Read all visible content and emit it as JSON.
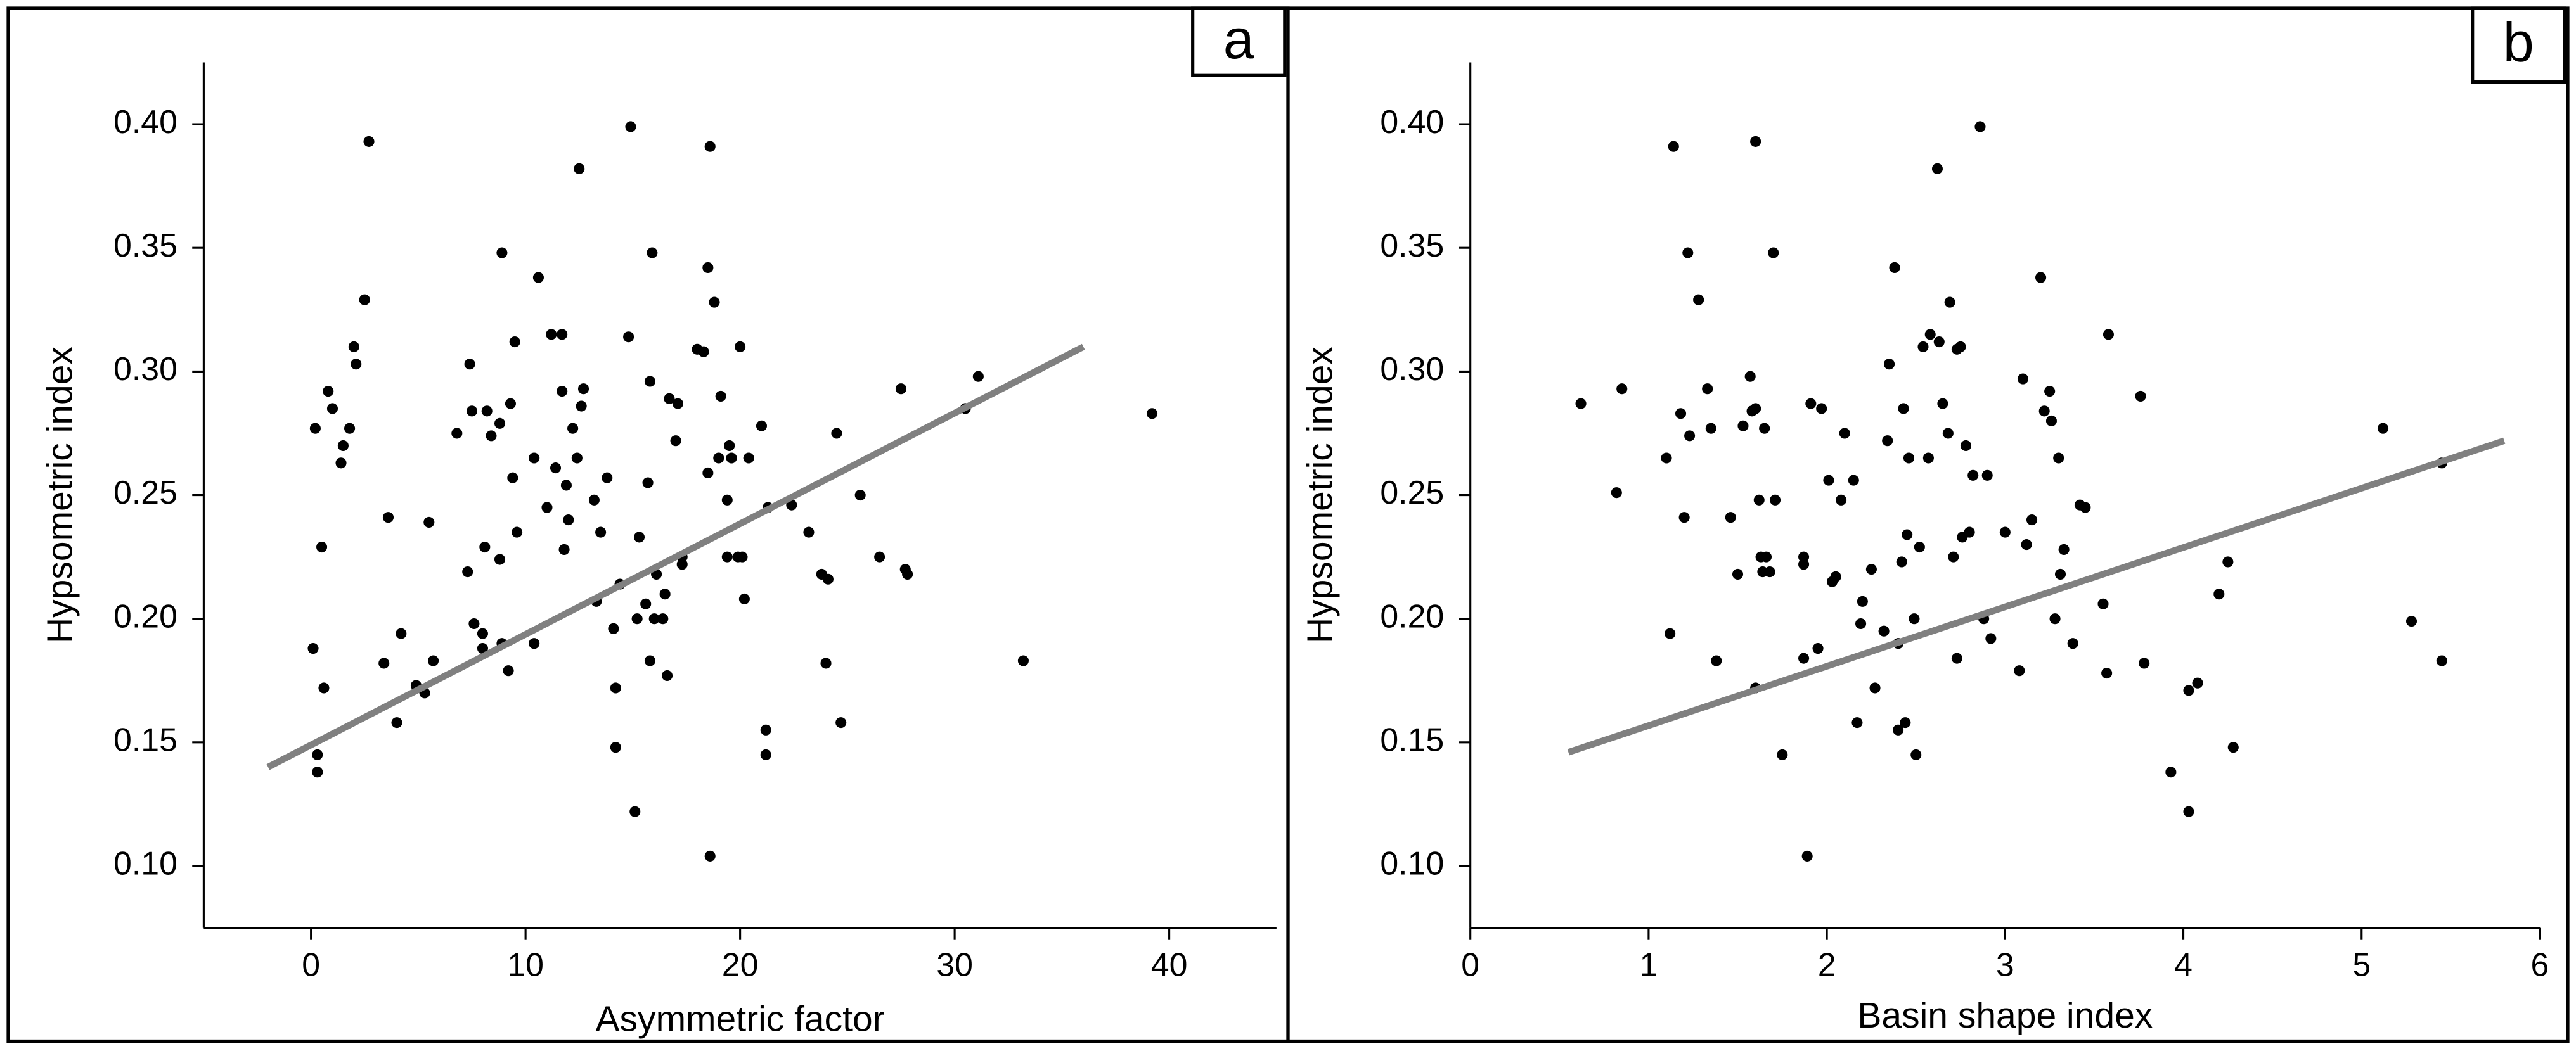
{
  "chart_data": [
    {
      "type": "scatter",
      "panel": "a",
      "x_label": "Asymmetric factor",
      "y_label": "Hypsometric index",
      "xlim": [
        -5,
        45
      ],
      "ylim": [
        0.075,
        0.425
      ],
      "xticks": [
        0,
        10,
        20,
        30,
        40
      ],
      "yticks": [
        {
          "value": 0.1,
          "label": "0.10"
        },
        0.15,
        {
          "value": 0.2,
          "label": "0.20"
        },
        0.25,
        {
          "value": 0.3,
          "label": "0.30"
        },
        0.35,
        {
          "value": 0.4,
          "label": "0.40"
        }
      ],
      "color": "#000000",
      "x": [
        0.1,
        0.2,
        0.3,
        0.3,
        0.5,
        0.6,
        0.8,
        1.0,
        1.4,
        1.5,
        1.8,
        2.0,
        2.1,
        2.5,
        2.7,
        3.4,
        3.6,
        4.0,
        4.2,
        4.9,
        5.3,
        5.5,
        5.7,
        6.8,
        7.3,
        7.4,
        7.5,
        7.6,
        8.0,
        8.0,
        8.1,
        8.2,
        8.4,
        8.8,
        8.8,
        8.9,
        8.9,
        9.2,
        9.3,
        9.4,
        9.5,
        9.6,
        10.4,
        10.4,
        10.6,
        11.0,
        11.2,
        11.4,
        11.7,
        11.7,
        11.8,
        11.9,
        12.0,
        12.2,
        12.4,
        12.5,
        12.6,
        12.7,
        13.2,
        13.3,
        13.5,
        13.8,
        14.1,
        14.2,
        14.2,
        14.4,
        14.8,
        14.9,
        15.1,
        15.2,
        15.3,
        15.6,
        15.7,
        15.8,
        15.8,
        15.9,
        16.0,
        16.1,
        16.4,
        16.5,
        16.6,
        16.7,
        17.0,
        17.1,
        17.3,
        17.3,
        18.0,
        18.3,
        18.5,
        18.5,
        18.6,
        18.6,
        18.8,
        19.0,
        19.1,
        19.4,
        19.4,
        19.5,
        19.6,
        19.9,
        20.0,
        20.1,
        20.2,
        20.4,
        21.0,
        21.2,
        21.2,
        21.3,
        22.4,
        23.2,
        23.8,
        24.0,
        24.1,
        24.5,
        24.7,
        25.6,
        26.5,
        27.5,
        27.7,
        27.8,
        30.5,
        31.1,
        33.2,
        39.2
      ],
      "values": [
        0.188,
        0.277,
        0.145,
        0.138,
        0.229,
        0.172,
        0.292,
        0.285,
        0.263,
        0.27,
        0.277,
        0.31,
        0.303,
        0.329,
        0.393,
        0.182,
        0.241,
        0.158,
        0.194,
        0.173,
        0.17,
        0.239,
        0.183,
        0.275,
        0.219,
        0.303,
        0.284,
        0.198,
        0.194,
        0.188,
        0.229,
        0.284,
        0.274,
        0.279,
        0.224,
        0.19,
        0.348,
        0.179,
        0.287,
        0.257,
        0.312,
        0.235,
        0.19,
        0.265,
        0.338,
        0.245,
        0.315,
        0.261,
        0.315,
        0.292,
        0.228,
        0.254,
        0.24,
        0.277,
        0.265,
        0.382,
        0.286,
        0.293,
        0.248,
        0.207,
        0.235,
        0.257,
        0.196,
        0.148,
        0.172,
        0.214,
        0.314,
        0.399,
        0.122,
        0.2,
        0.233,
        0.206,
        0.255,
        0.296,
        0.183,
        0.348,
        0.2,
        0.218,
        0.2,
        0.21,
        0.177,
        0.289,
        0.272,
        0.287,
        0.222,
        0.225,
        0.309,
        0.308,
        0.259,
        0.342,
        0.104,
        0.391,
        0.328,
        0.265,
        0.29,
        0.225,
        0.248,
        0.27,
        0.265,
        0.225,
        0.31,
        0.225,
        0.208,
        0.265,
        0.278,
        0.145,
        0.155,
        0.245,
        0.246,
        0.235,
        0.218,
        0.182,
        0.216,
        0.275,
        0.158,
        0.25,
        0.225,
        0.293,
        0.22,
        0.218,
        0.285,
        0.298,
        0.183,
        0.283
      ],
      "trendline": {
        "x": [
          -2,
          36
        ],
        "values": [
          0.14,
          0.31
        ],
        "color": "#808080"
      }
    },
    {
      "type": "scatter",
      "panel": "b",
      "x_label": "Basin shape index",
      "y_label": "Hypsometric index",
      "xlim": [
        0,
        6
      ],
      "ylim": [
        0.075,
        0.425
      ],
      "xticks": [
        0,
        1,
        2,
        3,
        4,
        5,
        6
      ],
      "yticks": [
        {
          "value": 0.1,
          "label": "0.10"
        },
        0.15,
        {
          "value": 0.2,
          "label": "0.20"
        },
        0.25,
        {
          "value": 0.3,
          "label": "0.30"
        },
        0.35,
        {
          "value": 0.4,
          "label": "0.40"
        }
      ],
      "color": "#000000",
      "x": [
        0.62,
        0.82,
        0.85,
        1.1,
        1.12,
        1.14,
        1.18,
        1.2,
        1.22,
        1.23,
        1.28,
        1.33,
        1.35,
        1.38,
        1.46,
        1.5,
        1.53,
        1.57,
        1.58,
        1.6,
        1.6,
        1.6,
        1.62,
        1.63,
        1.64,
        1.65,
        1.66,
        1.68,
        1.7,
        1.71,
        1.75,
        1.87,
        1.87,
        1.87,
        1.89,
        1.91,
        1.95,
        1.97,
        2.01,
        2.03,
        2.05,
        2.08,
        2.1,
        2.15,
        2.17,
        2.19,
        2.2,
        2.25,
        2.27,
        2.32,
        2.34,
        2.35,
        2.38,
        2.4,
        2.4,
        2.42,
        2.43,
        2.44,
        2.45,
        2.46,
        2.49,
        2.5,
        2.52,
        2.54,
        2.57,
        2.58,
        2.62,
        2.63,
        2.65,
        2.68,
        2.69,
        2.71,
        2.73,
        2.73,
        2.75,
        2.76,
        2.78,
        2.8,
        2.82,
        2.86,
        2.88,
        2.9,
        2.92,
        3.0,
        3.08,
        3.1,
        3.12,
        3.15,
        3.2,
        3.22,
        3.25,
        3.26,
        3.28,
        3.3,
        3.31,
        3.33,
        3.38,
        3.42,
        3.45,
        3.55,
        3.57,
        3.58,
        3.76,
        3.78,
        3.93,
        4.03,
        4.03,
        4.08,
        4.2,
        4.25,
        4.28,
        5.12,
        5.28,
        5.45,
        5.45
      ],
      "values": [
        0.287,
        0.251,
        0.293,
        0.265,
        0.194,
        0.391,
        0.283,
        0.241,
        0.348,
        0.274,
        0.329,
        0.293,
        0.277,
        0.183,
        0.241,
        0.218,
        0.278,
        0.298,
        0.284,
        0.172,
        0.285,
        0.393,
        0.248,
        0.225,
        0.219,
        0.277,
        0.225,
        0.219,
        0.348,
        0.248,
        0.145,
        0.222,
        0.184,
        0.225,
        0.104,
        0.287,
        0.188,
        0.285,
        0.256,
        0.215,
        0.217,
        0.248,
        0.275,
        0.256,
        0.158,
        0.198,
        0.207,
        0.22,
        0.172,
        0.195,
        0.272,
        0.303,
        0.342,
        0.19,
        0.155,
        0.223,
        0.285,
        0.158,
        0.234,
        0.265,
        0.2,
        0.145,
        0.229,
        0.31,
        0.265,
        0.315,
        0.382,
        0.312,
        0.287,
        0.275,
        0.328,
        0.225,
        0.309,
        0.184,
        0.31,
        0.233,
        0.27,
        0.235,
        0.258,
        0.399,
        0.2,
        0.258,
        0.192,
        0.235,
        0.179,
        0.297,
        0.23,
        0.24,
        0.338,
        0.284,
        0.292,
        0.28,
        0.2,
        0.265,
        0.218,
        0.228,
        0.19,
        0.246,
        0.245,
        0.206,
        0.178,
        0.315,
        0.29,
        0.182,
        0.138,
        0.122,
        0.171,
        0.174,
        0.21,
        0.223,
        0.148,
        0.277,
        0.199,
        0.263,
        0.183
      ],
      "trendline": {
        "x": [
          0.55,
          5.8
        ],
        "values": [
          0.146,
          0.272
        ],
        "color": "#808080"
      }
    }
  ]
}
